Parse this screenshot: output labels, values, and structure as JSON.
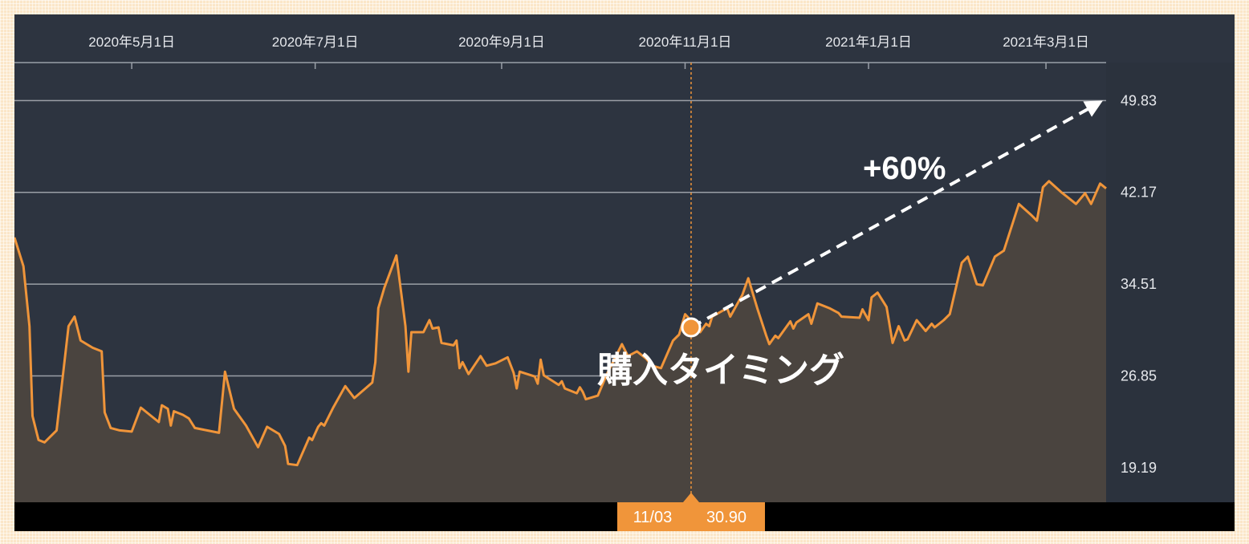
{
  "chart_data": {
    "type": "area",
    "x_axis": {
      "position": "top",
      "ticks": [
        "2020年5月1日",
        "2020年7月1日",
        "2020年9月1日",
        "2020年11月1日",
        "2021年1月1日",
        "2021年3月1日"
      ]
    },
    "y_axis": {
      "position": "right",
      "ticks": [
        19.19,
        26.85,
        34.51,
        42.17,
        49.83
      ],
      "tick_labels": [
        "19.19",
        "26.85",
        "34.51",
        "42.17",
        "49.83"
      ],
      "ylim": [
        16.3,
        53.0
      ]
    },
    "x_range": [
      "2020-03-23",
      "2021-03-21"
    ],
    "grid": true,
    "series": [
      {
        "color": "#f0953a",
        "points": [
          [
            "2020-03-23",
            38.4
          ],
          [
            "2020-03-26",
            36.0
          ],
          [
            "2020-03-28",
            31.0
          ],
          [
            "2020-03-29",
            23.5
          ],
          [
            "2020-03-31",
            21.5
          ],
          [
            "2020-04-02",
            21.3
          ],
          [
            "2020-04-06",
            22.3
          ],
          [
            "2020-04-10",
            31.0
          ],
          [
            "2020-04-12",
            31.8
          ],
          [
            "2020-04-14",
            29.8
          ],
          [
            "2020-04-18",
            29.2
          ],
          [
            "2020-04-21",
            28.9
          ],
          [
            "2020-04-22",
            23.8
          ],
          [
            "2020-04-24",
            22.5
          ],
          [
            "2020-04-27",
            22.3
          ],
          [
            "2020-05-01",
            22.2
          ],
          [
            "2020-05-04",
            24.2
          ],
          [
            "2020-05-08",
            23.4
          ],
          [
            "2020-05-10",
            23.0
          ],
          [
            "2020-05-11",
            24.4
          ],
          [
            "2020-05-13",
            24.1
          ],
          [
            "2020-05-14",
            22.7
          ],
          [
            "2020-05-15",
            23.9
          ],
          [
            "2020-05-18",
            23.6
          ],
          [
            "2020-05-20",
            23.3
          ],
          [
            "2020-05-22",
            22.5
          ],
          [
            "2020-05-26",
            22.3
          ],
          [
            "2020-05-30",
            22.1
          ],
          [
            "2020-06-01",
            27.2
          ],
          [
            "2020-06-04",
            24.1
          ],
          [
            "2020-06-08",
            22.7
          ],
          [
            "2020-06-12",
            20.9
          ],
          [
            "2020-06-15",
            22.6
          ],
          [
            "2020-06-19",
            22.0
          ],
          [
            "2020-06-21",
            21.0
          ],
          [
            "2020-06-22",
            19.5
          ],
          [
            "2020-06-25",
            19.4
          ],
          [
            "2020-06-29",
            21.7
          ],
          [
            "2020-06-30",
            21.5
          ],
          [
            "2020-07-02",
            22.6
          ],
          [
            "2020-07-03",
            22.9
          ],
          [
            "2020-07-04",
            22.7
          ],
          [
            "2020-07-07",
            24.2
          ],
          [
            "2020-07-11",
            26.0
          ],
          [
            "2020-07-14",
            25.0
          ],
          [
            "2020-07-20",
            26.3
          ],
          [
            "2020-07-21",
            28.0
          ],
          [
            "2020-07-22",
            32.5
          ],
          [
            "2020-07-24",
            34.2
          ],
          [
            "2020-07-28",
            36.9
          ],
          [
            "2020-07-30",
            33.0
          ],
          [
            "2020-07-31",
            31.0
          ],
          [
            "2020-08-01",
            27.2
          ],
          [
            "2020-08-02",
            30.5
          ],
          [
            "2020-08-06",
            30.5
          ],
          [
            "2020-08-08",
            31.5
          ],
          [
            "2020-08-09",
            30.8
          ],
          [
            "2020-08-11",
            30.9
          ],
          [
            "2020-08-12",
            29.6
          ],
          [
            "2020-08-16",
            29.4
          ],
          [
            "2020-08-17",
            29.8
          ],
          [
            "2020-08-18",
            27.5
          ],
          [
            "2020-08-19",
            28.0
          ],
          [
            "2020-08-21",
            27.0
          ],
          [
            "2020-08-25",
            28.5
          ],
          [
            "2020-08-27",
            27.7
          ],
          [
            "2020-08-30",
            27.9
          ],
          [
            "2020-09-03",
            28.4
          ],
          [
            "2020-09-05",
            27.1
          ],
          [
            "2020-09-06",
            25.8
          ],
          [
            "2020-09-07",
            27.2
          ],
          [
            "2020-09-12",
            26.8
          ],
          [
            "2020-09-13",
            26.2
          ],
          [
            "2020-09-14",
            28.2
          ],
          [
            "2020-09-15",
            26.9
          ],
          [
            "2020-09-20",
            26.1
          ],
          [
            "2020-09-21",
            26.4
          ],
          [
            "2020-09-22",
            25.8
          ],
          [
            "2020-09-26",
            25.4
          ],
          [
            "2020-09-27",
            25.9
          ],
          [
            "2020-09-28",
            25.5
          ],
          [
            "2020-09-29",
            24.9
          ],
          [
            "2020-10-03",
            25.2
          ],
          [
            "2020-10-06",
            27.0
          ],
          [
            "2020-10-11",
            29.5
          ],
          [
            "2020-10-13",
            28.5
          ],
          [
            "2020-10-16",
            28.9
          ],
          [
            "2020-10-19",
            28.3
          ],
          [
            "2020-10-21",
            27.7
          ],
          [
            "2020-10-24",
            27.5
          ],
          [
            "2020-10-28",
            29.8
          ],
          [
            "2020-10-30",
            30.3
          ],
          [
            "2020-11-01",
            32.0
          ],
          [
            "2020-11-04",
            31.2
          ],
          [
            "2020-11-06",
            30.5
          ],
          [
            "2020-11-08",
            31.2
          ],
          [
            "2020-11-09",
            31.0
          ],
          [
            "2020-11-10",
            31.8
          ],
          [
            "2020-11-15",
            32.5
          ],
          [
            "2020-11-16",
            31.8
          ],
          [
            "2020-11-20",
            33.6
          ],
          [
            "2020-11-22",
            35.0
          ],
          [
            "2020-11-25",
            32.5
          ],
          [
            "2020-11-28",
            30.2
          ],
          [
            "2020-11-29",
            29.5
          ],
          [
            "2020-12-01",
            30.2
          ],
          [
            "2020-12-02",
            30.0
          ],
          [
            "2020-12-06",
            31.4
          ],
          [
            "2020-12-07",
            30.8
          ],
          [
            "2020-12-08",
            31.3
          ],
          [
            "2020-12-12",
            32.0
          ],
          [
            "2020-12-13",
            31.2
          ],
          [
            "2020-12-15",
            32.9
          ],
          [
            "2020-12-19",
            32.5
          ],
          [
            "2020-12-22",
            32.1
          ],
          [
            "2020-12-23",
            31.8
          ],
          [
            "2020-12-29",
            31.7
          ],
          [
            "2020-12-30",
            32.4
          ],
          [
            "2021-01-01",
            31.5
          ],
          [
            "2021-01-02",
            33.4
          ],
          [
            "2021-01-04",
            33.8
          ],
          [
            "2021-01-07",
            32.6
          ],
          [
            "2021-01-09",
            29.6
          ],
          [
            "2021-01-11",
            31.0
          ],
          [
            "2021-01-13",
            29.8
          ],
          [
            "2021-01-14",
            29.9
          ],
          [
            "2021-01-17",
            31.5
          ],
          [
            "2021-01-20",
            30.6
          ],
          [
            "2021-01-22",
            31.2
          ],
          [
            "2021-01-23",
            30.9
          ],
          [
            "2021-01-26",
            31.5
          ],
          [
            "2021-01-28",
            32.0
          ],
          [
            "2021-02-01",
            36.3
          ],
          [
            "2021-02-03",
            36.8
          ],
          [
            "2021-02-06",
            34.5
          ],
          [
            "2021-02-08",
            34.4
          ],
          [
            "2021-02-12",
            36.8
          ],
          [
            "2021-02-15",
            37.3
          ],
          [
            "2021-02-20",
            41.2
          ],
          [
            "2021-02-24",
            40.3
          ],
          [
            "2021-02-26",
            39.8
          ],
          [
            "2021-02-28",
            42.6
          ],
          [
            "2021-03-02",
            43.1
          ],
          [
            "2021-03-06",
            42.2
          ],
          [
            "2021-03-08",
            41.8
          ],
          [
            "2021-03-11",
            41.2
          ],
          [
            "2021-03-14",
            42.1
          ],
          [
            "2021-03-16",
            41.2
          ],
          [
            "2021-03-19",
            42.9
          ],
          [
            "2021-03-21",
            42.5
          ]
        ]
      }
    ],
    "annotations": {
      "purchase_label": "購入タイミング",
      "gain_label": "+60%",
      "tooltip_date": "11/03",
      "tooltip_value": "30.90"
    }
  }
}
